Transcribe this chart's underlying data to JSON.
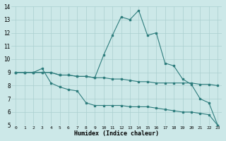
{
  "xlabel": "Humidex (Indice chaleur)",
  "xlim": [
    -0.5,
    23.5
  ],
  "ylim": [
    5,
    14
  ],
  "xticks": [
    0,
    1,
    2,
    3,
    4,
    5,
    6,
    7,
    8,
    9,
    10,
    11,
    12,
    13,
    14,
    15,
    16,
    17,
    18,
    19,
    20,
    21,
    22,
    23
  ],
  "yticks": [
    5,
    6,
    7,
    8,
    9,
    10,
    11,
    12,
    13,
    14
  ],
  "bg_color": "#cce8e8",
  "line_color": "#2e7d7d",
  "grid_color": "#aacfcf",
  "line1_x": [
    0,
    1,
    2,
    3,
    4,
    5,
    6,
    7,
    8,
    9,
    10,
    11,
    12,
    13,
    14,
    15,
    16,
    17,
    18,
    19,
    20,
    21,
    22,
    23
  ],
  "line1_y": [
    9.0,
    9.0,
    9.0,
    9.3,
    8.2,
    7.9,
    7.7,
    7.6,
    6.7,
    6.5,
    6.5,
    6.5,
    6.5,
    6.4,
    6.4,
    6.4,
    6.3,
    6.2,
    6.1,
    6.0,
    6.0,
    5.9,
    5.8,
    5.0
  ],
  "line2_x": [
    0,
    1,
    2,
    3,
    4,
    5,
    6,
    7,
    8,
    9,
    10,
    11,
    12,
    13,
    14,
    15,
    16,
    17,
    18,
    19,
    20,
    21,
    22,
    23
  ],
  "line2_y": [
    9.0,
    9.0,
    9.0,
    9.0,
    9.0,
    8.8,
    8.8,
    8.7,
    8.7,
    8.6,
    8.6,
    8.5,
    8.5,
    8.4,
    8.3,
    8.3,
    8.2,
    8.2,
    8.2,
    8.2,
    8.2,
    8.1,
    8.1,
    8.0
  ],
  "line3_x": [
    0,
    1,
    2,
    3,
    4,
    5,
    6,
    7,
    8,
    9,
    10,
    11,
    12,
    13,
    14,
    15,
    16,
    17,
    18,
    19,
    20,
    21,
    22,
    23
  ],
  "line3_y": [
    9.0,
    9.0,
    9.0,
    9.0,
    9.0,
    8.8,
    8.8,
    8.7,
    8.7,
    8.6,
    10.3,
    11.8,
    13.2,
    13.0,
    13.7,
    11.8,
    12.0,
    9.7,
    9.5,
    8.5,
    8.1,
    7.0,
    6.7,
    5.0
  ]
}
